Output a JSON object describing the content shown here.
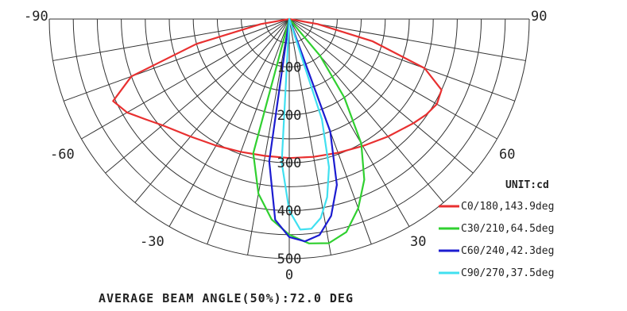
{
  "chart_data": {
    "type": "polar",
    "title": "",
    "radial_axis": {
      "ticks": [
        "0",
        "100",
        "200",
        "300",
        "400",
        "500"
      ],
      "max": 500
    },
    "angle_labels": [
      "-90",
      "90",
      "-60",
      "60",
      "-30",
      "30",
      "0"
    ],
    "unit_label": "UNIT:cd",
    "footer": "AVERAGE BEAM ANGLE(50%):72.0 DEG",
    "series": [
      {
        "name": "C0/180,143.9deg",
        "color": "#e83030",
        "theta_deg": [
          -90,
          -80,
          -75,
          -70,
          -65,
          -60,
          -55,
          -50,
          -40,
          -30,
          -20,
          -10,
          0,
          10,
          20,
          30,
          40,
          50,
          55,
          60,
          65,
          70,
          75,
          80,
          90
        ],
        "r": [
          0,
          60,
          200,
          350,
          405,
          390,
          365,
          345,
          320,
          305,
          295,
          290,
          290,
          292,
          297,
          306,
          320,
          338,
          348,
          355,
          350,
          300,
          180,
          60,
          0
        ]
      },
      {
        "name": "C30/210,64.5deg",
        "color": "#30d030",
        "theta_deg": [
          -20,
          -15,
          -10,
          -5,
          0,
          5,
          10,
          15,
          20,
          25,
          30,
          35,
          40,
          45
        ],
        "r": [
          0,
          290,
          370,
          420,
          450,
          470,
          475,
          460,
          420,
          370,
          300,
          200,
          100,
          0
        ]
      },
      {
        "name": "C60/240,42.3deg",
        "color": "#1c1cd0",
        "theta_deg": [
          -12,
          -8,
          -4,
          0,
          4,
          8,
          12,
          16,
          20,
          24
        ],
        "r": [
          0,
          300,
          420,
          455,
          465,
          455,
          420,
          360,
          250,
          0
        ]
      },
      {
        "name": "C90/270,37.5deg",
        "color": "#40e0f0",
        "theta_deg": [
          -6,
          -3,
          0,
          3,
          6,
          9,
          12,
          15,
          18,
          21
        ],
        "r": [
          0,
          300,
          400,
          440,
          440,
          420,
          380,
          320,
          220,
          0
        ]
      }
    ]
  }
}
